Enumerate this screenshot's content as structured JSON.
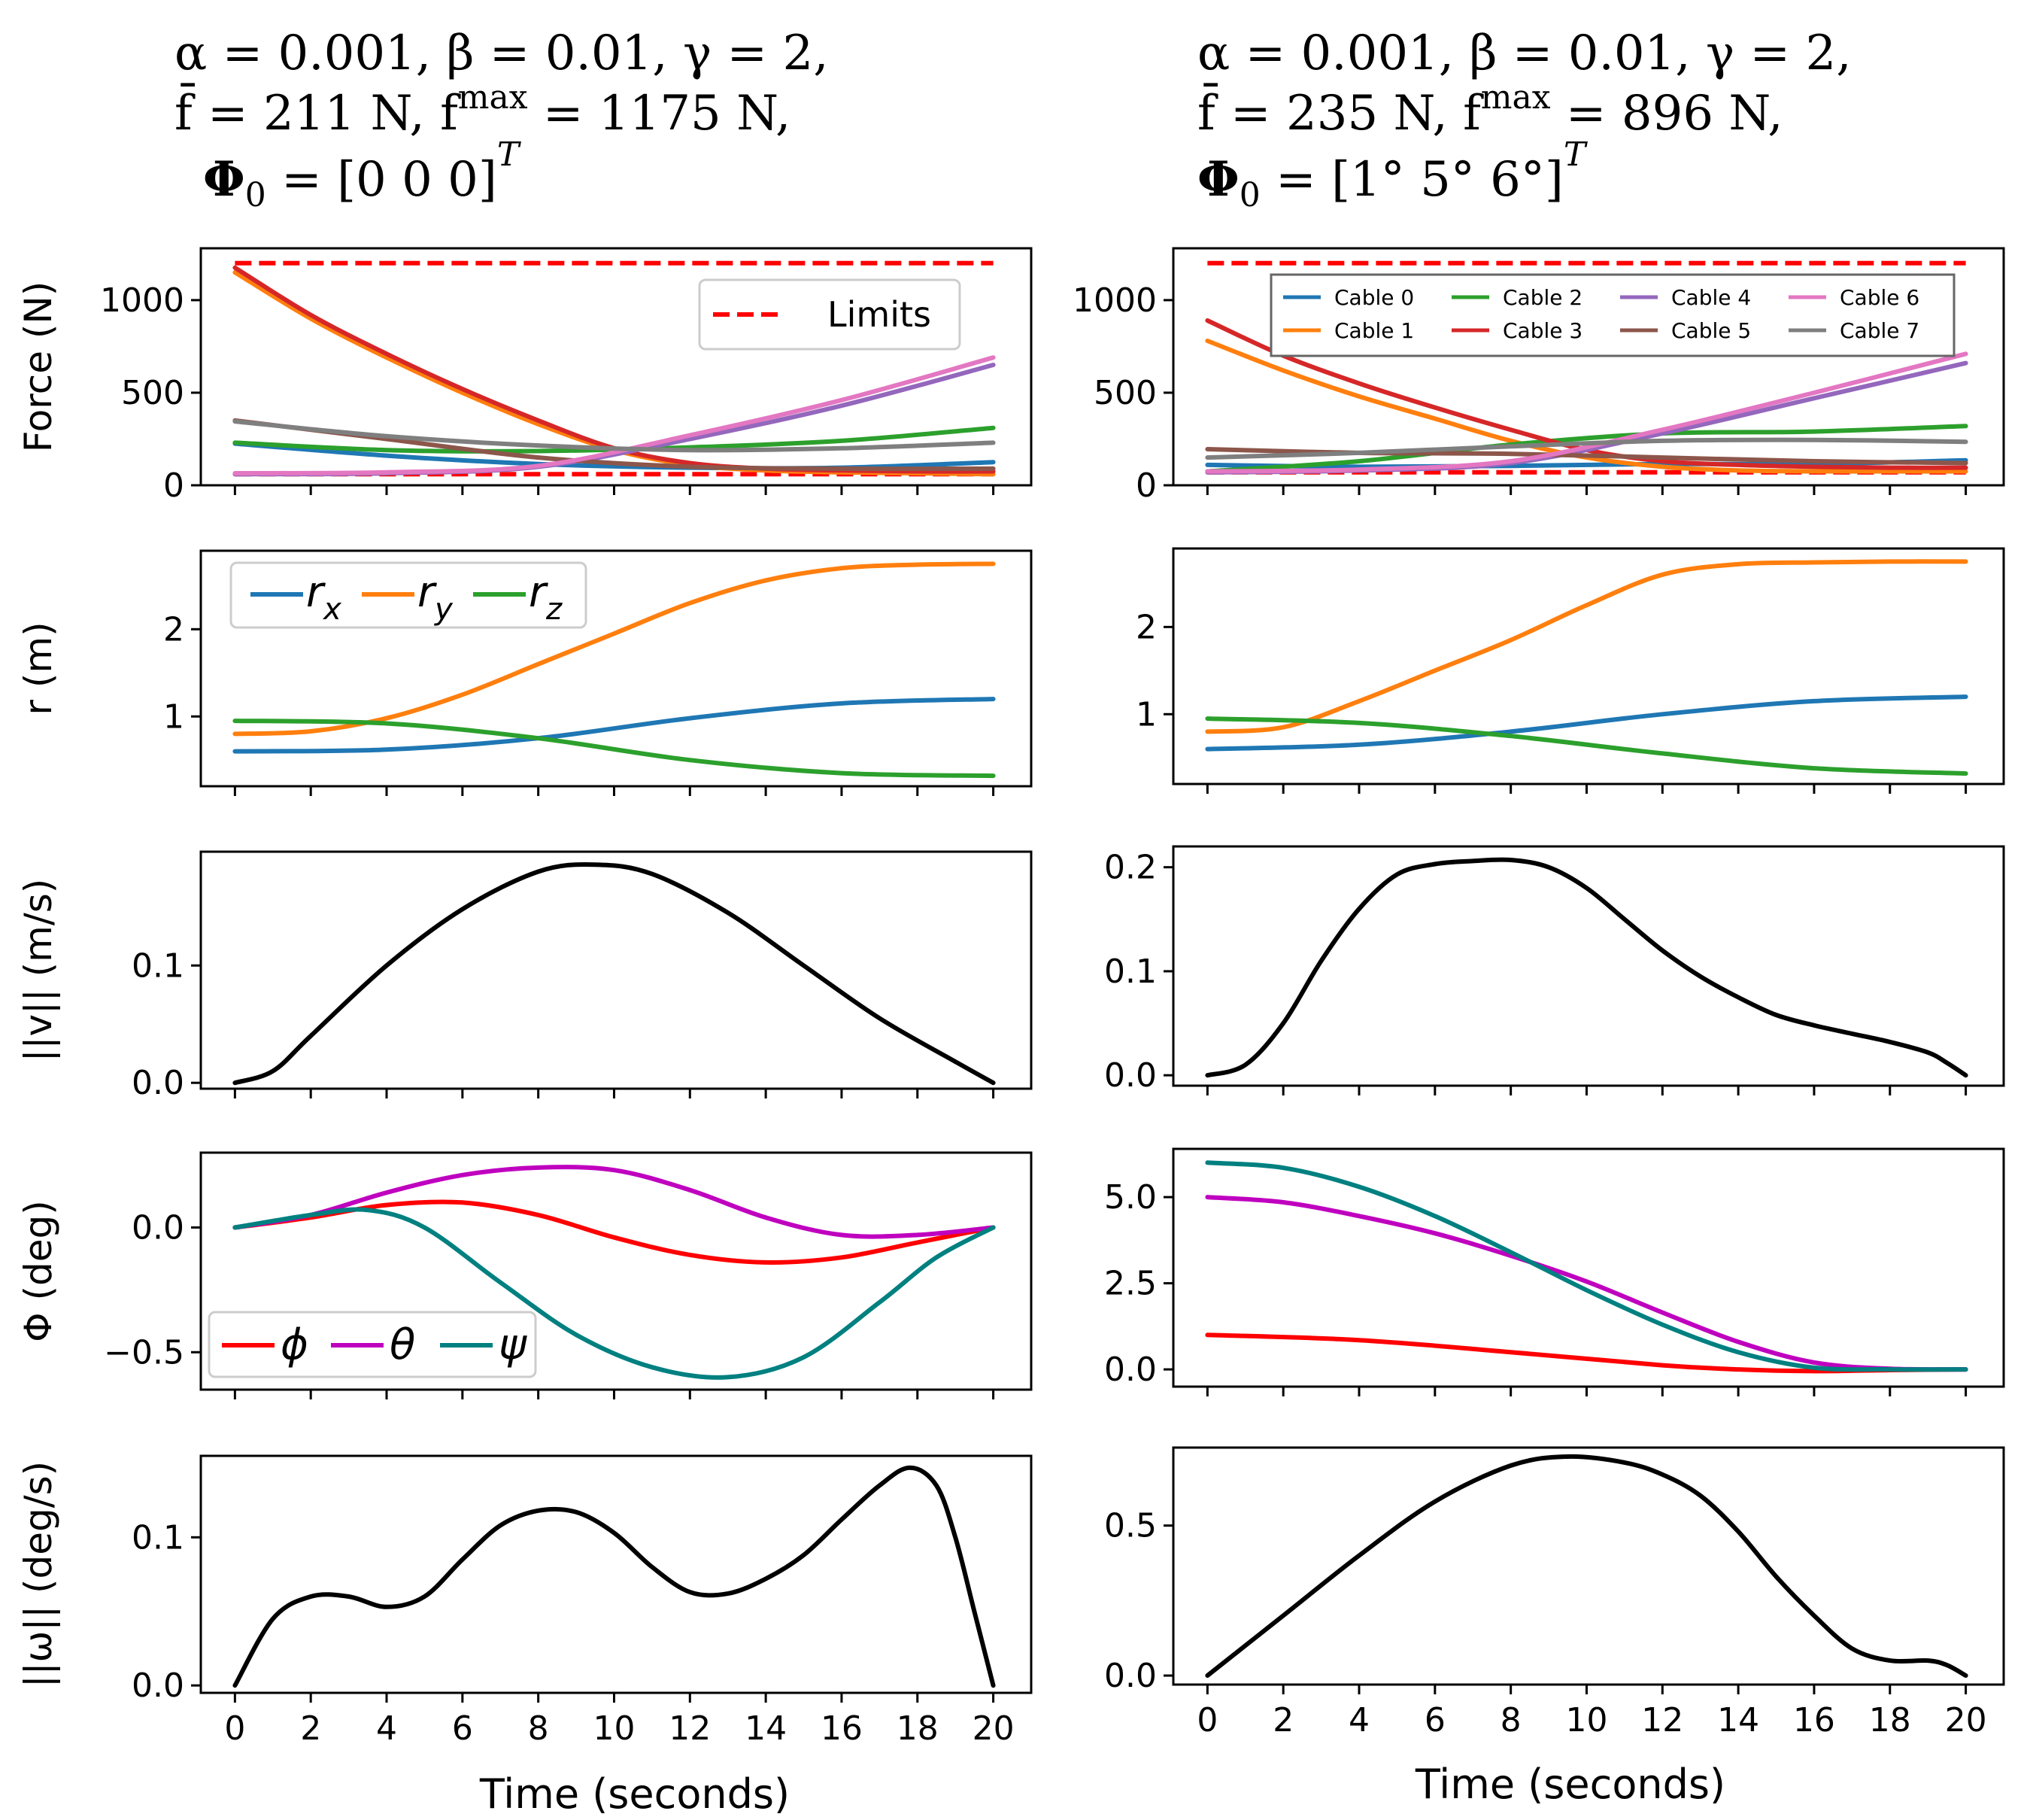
{
  "figure": {
    "columns": [
      {
        "title_lines": [
          "α = 0.001, β = 0.01, γ = 2,",
          "f̄ = 211 N, f^max = 1175 N,",
          "Φ0 = [0    0    0]^T"
        ],
        "title_parts": {
          "line2_a": "f̄ = 211 N, f",
          "line2_sup": "max",
          "line2_b": " = 1175 N,",
          "line3_a": "Φ",
          "line3_sub": "0",
          "line3_b": " = [0    0    0]",
          "line3_sup": "T"
        }
      },
      {
        "title_lines": [
          "α = 0.001, β = 0.01, γ = 2,",
          "f̄ = 235 N, f^max = 896 N,",
          "Φ0 = [1°    5°    6°]^T"
        ],
        "title_parts": {
          "line2_a": "f̄ = 235 N, f",
          "line2_sup": "max",
          "line2_b": " = 896 N,",
          "line3_a": "Φ",
          "line3_sub": "0",
          "line3_b": " = [1°    5°    6°]",
          "line3_sup": "T"
        }
      }
    ],
    "xlabel": "Time (seconds)",
    "xticks": [
      0,
      2,
      4,
      6,
      8,
      10,
      12,
      14,
      16,
      18,
      20
    ],
    "xlim": [
      -0.9,
      21.0
    ]
  },
  "colors": {
    "c0": "#1f77b4",
    "c1": "#ff7f0e",
    "c2": "#2ca02c",
    "c3": "#d62728",
    "c4": "#9467bd",
    "c5": "#8c564b",
    "c6": "#e377c2",
    "c7": "#7f7f7f",
    "limit": "#ff0000",
    "black": "#000000",
    "phi": "#ff0000",
    "theta": "#bf00bf",
    "psi": "#008080"
  },
  "chart_data": [
    {
      "id": "force-left",
      "type": "line",
      "row": 0,
      "col": 0,
      "ylabel": "Force (N)",
      "ylim": [
        0,
        1280
      ],
      "yticks": [
        0,
        500,
        1000
      ],
      "legend": {
        "position": "top-right",
        "entries": [
          "Limits"
        ]
      },
      "limits": [
        60,
        1200
      ],
      "series": [
        {
          "name": "Cable 0",
          "color": "c0",
          "x": [
            0,
            4,
            8,
            12,
            16,
            20
          ],
          "y": [
            225,
            160,
            115,
            95,
            95,
            125
          ]
        },
        {
          "name": "Cable 1",
          "color": "c1",
          "x": [
            0,
            2,
            4,
            6,
            8,
            10,
            12,
            14,
            16,
            18,
            20
          ],
          "y": [
            1150,
            900,
            690,
            500,
            330,
            190,
            110,
            80,
            70,
            65,
            60
          ]
        },
        {
          "name": "Cable 2",
          "color": "c2",
          "x": [
            0,
            4,
            8,
            12,
            16,
            20
          ],
          "y": [
            230,
            190,
            185,
            205,
            240,
            310
          ]
        },
        {
          "name": "Cable 3",
          "color": "c3",
          "x": [
            0,
            2,
            4,
            6,
            8,
            10,
            12,
            14,
            16,
            18,
            20
          ],
          "y": [
            1175,
            920,
            710,
            520,
            350,
            200,
            120,
            90,
            80,
            75,
            75
          ]
        },
        {
          "name": "Cable 4",
          "color": "c4",
          "x": [
            0,
            4,
            8,
            12,
            16,
            20
          ],
          "y": [
            60,
            65,
            100,
            250,
            430,
            650
          ]
        },
        {
          "name": "Cable 5",
          "color": "c5",
          "x": [
            0,
            4,
            8,
            12,
            16,
            20
          ],
          "y": [
            350,
            250,
            150,
            100,
            90,
            90
          ]
        },
        {
          "name": "Cable 6",
          "color": "c6",
          "x": [
            0,
            4,
            8,
            12,
            16,
            20
          ],
          "y": [
            65,
            70,
            105,
            270,
            460,
            690
          ]
        },
        {
          "name": "Cable 7",
          "color": "c7",
          "x": [
            0,
            4,
            8,
            12,
            16,
            20
          ],
          "y": [
            345,
            265,
            215,
            190,
            200,
            230
          ]
        }
      ]
    },
    {
      "id": "force-right",
      "type": "line",
      "row": 0,
      "col": 1,
      "ylabel": "",
      "ylim": [
        0,
        1280
      ],
      "yticks": [
        0,
        500,
        1000
      ],
      "legend": {
        "position": "top-right",
        "entries": [
          "Cable 0",
          "Cable 1",
          "Cable 2",
          "Cable 3",
          "Cable 4",
          "Cable 5",
          "Cable 6",
          "Cable 7"
        ]
      },
      "limits": [
        70,
        1200
      ],
      "series": [
        {
          "name": "Cable 0",
          "color": "c0",
          "x": [
            0,
            4,
            8,
            12,
            16,
            20
          ],
          "y": [
            110,
            100,
            105,
            115,
            115,
            135
          ]
        },
        {
          "name": "Cable 1",
          "color": "c1",
          "x": [
            0,
            2,
            4,
            6,
            8,
            10,
            12,
            14,
            16,
            18,
            20
          ],
          "y": [
            780,
            620,
            480,
            360,
            240,
            150,
            100,
            80,
            75,
            75,
            75
          ]
        },
        {
          "name": "Cable 2",
          "color": "c2",
          "x": [
            0,
            4,
            8,
            12,
            16,
            20
          ],
          "y": [
            75,
            130,
            220,
            280,
            290,
            320
          ]
        },
        {
          "name": "Cable 3",
          "color": "c3",
          "x": [
            0,
            2,
            4,
            6,
            8,
            10,
            12,
            14,
            16,
            18,
            20
          ],
          "y": [
            890,
            700,
            550,
            420,
            300,
            190,
            130,
            110,
            100,
            95,
            95
          ]
        },
        {
          "name": "Cable 4",
          "color": "c4",
          "x": [
            0,
            4,
            8,
            12,
            16,
            20
          ],
          "y": [
            70,
            80,
            120,
            280,
            470,
            660
          ]
        },
        {
          "name": "Cable 5",
          "color": "c5",
          "x": [
            0,
            4,
            8,
            12,
            16,
            20
          ],
          "y": [
            195,
            175,
            170,
            150,
            130,
            120
          ]
        },
        {
          "name": "Cable 6",
          "color": "c6",
          "x": [
            0,
            4,
            8,
            12,
            16,
            20
          ],
          "y": [
            75,
            85,
            130,
            300,
            500,
            710
          ]
        },
        {
          "name": "Cable 7",
          "color": "c7",
          "x": [
            0,
            4,
            8,
            12,
            16,
            20
          ],
          "y": [
            150,
            175,
            210,
            240,
            245,
            235
          ]
        }
      ]
    },
    {
      "id": "pos-left",
      "type": "line",
      "row": 1,
      "col": 0,
      "ylabel": "r (m)",
      "ylim": [
        0.2,
        2.9
      ],
      "yticks": [
        1,
        2
      ],
      "legend": {
        "position": "top-left",
        "entries": [
          "r_x",
          "r_y",
          "r_z"
        ]
      },
      "series": [
        {
          "name": "r_x",
          "color": "c0",
          "x": [
            0,
            4,
            8,
            12,
            16,
            20
          ],
          "y": [
            0.6,
            0.62,
            0.75,
            0.98,
            1.15,
            1.2
          ]
        },
        {
          "name": "r_y",
          "color": "c1",
          "x": [
            0,
            2,
            4,
            6,
            8,
            10,
            12,
            14,
            16,
            18,
            20
          ],
          "y": [
            0.8,
            0.83,
            0.98,
            1.25,
            1.6,
            1.95,
            2.3,
            2.56,
            2.7,
            2.74,
            2.75
          ]
        },
        {
          "name": "r_z",
          "color": "c2",
          "x": [
            0,
            4,
            8,
            12,
            16,
            20
          ],
          "y": [
            0.95,
            0.92,
            0.75,
            0.5,
            0.35,
            0.32
          ]
        }
      ]
    },
    {
      "id": "pos-right",
      "type": "line",
      "row": 1,
      "col": 1,
      "ylabel": "",
      "ylim": [
        0.2,
        2.9
      ],
      "yticks": [
        1,
        2
      ],
      "legend": null,
      "series": [
        {
          "name": "r_x",
          "color": "c0",
          "x": [
            0,
            4,
            8,
            12,
            16,
            20
          ],
          "y": [
            0.6,
            0.65,
            0.8,
            1.0,
            1.15,
            1.2
          ]
        },
        {
          "name": "r_y",
          "color": "c1",
          "x": [
            0,
            2,
            4,
            6,
            8,
            10,
            12,
            14,
            16,
            18,
            20
          ],
          "y": [
            0.8,
            0.85,
            1.15,
            1.5,
            1.85,
            2.25,
            2.6,
            2.72,
            2.74,
            2.75,
            2.75
          ]
        },
        {
          "name": "r_z",
          "color": "c2",
          "x": [
            0,
            4,
            8,
            12,
            16,
            20
          ],
          "y": [
            0.95,
            0.9,
            0.75,
            0.55,
            0.38,
            0.32
          ]
        }
      ]
    },
    {
      "id": "vel-left",
      "type": "line",
      "row": 2,
      "col": 0,
      "ylabel": "||v|| (m/s)",
      "ylim": [
        -0.005,
        0.197
      ],
      "yticks": [
        0.0,
        0.1
      ],
      "legend": null,
      "series": [
        {
          "name": "||v||",
          "color": "black",
          "x": [
            0,
            1,
            2,
            4,
            6,
            8,
            9.5,
            11,
            13,
            15,
            17,
            19,
            20
          ],
          "y": [
            0.0,
            0.01,
            0.04,
            0.1,
            0.148,
            0.18,
            0.186,
            0.178,
            0.145,
            0.1,
            0.055,
            0.018,
            0.0
          ]
        }
      ]
    },
    {
      "id": "vel-right",
      "type": "line",
      "row": 2,
      "col": 1,
      "ylabel": "",
      "ylim": [
        -0.01,
        0.22
      ],
      "yticks": [
        0.0,
        0.1,
        0.2
      ],
      "legend": null,
      "series": [
        {
          "name": "||v||",
          "color": "black",
          "x": [
            0,
            1,
            2,
            3,
            4,
            5,
            6,
            7,
            8,
            9,
            10,
            11,
            12,
            13,
            14,
            15,
            16,
            17,
            18,
            19,
            19.5,
            20
          ],
          "y": [
            0.0,
            0.01,
            0.05,
            0.11,
            0.16,
            0.193,
            0.203,
            0.206,
            0.207,
            0.2,
            0.18,
            0.15,
            0.12,
            0.095,
            0.075,
            0.058,
            0.048,
            0.04,
            0.032,
            0.022,
            0.012,
            0.0
          ]
        }
      ]
    },
    {
      "id": "att-left",
      "type": "line",
      "row": 3,
      "col": 0,
      "ylabel": "Φ (deg)",
      "ylim": [
        -0.65,
        0.3
      ],
      "yticks": [
        -0.5,
        0.0
      ],
      "legend": {
        "position": "bottom-left",
        "entries": [
          "ϕ",
          "θ",
          "ψ"
        ]
      },
      "series": [
        {
          "name": "ϕ",
          "color": "phi",
          "x": [
            0,
            2,
            4,
            6,
            8,
            10,
            12,
            14,
            16,
            18,
            20
          ],
          "y": [
            0,
            0.04,
            0.09,
            0.1,
            0.05,
            -0.04,
            -0.11,
            -0.14,
            -0.12,
            -0.06,
            0
          ]
        },
        {
          "name": "θ",
          "color": "theta",
          "x": [
            0,
            2,
            4,
            6,
            8,
            10,
            12,
            14,
            16,
            18,
            20
          ],
          "y": [
            0,
            0.05,
            0.14,
            0.21,
            0.24,
            0.23,
            0.15,
            0.04,
            -0.03,
            -0.03,
            0
          ]
        },
        {
          "name": "ψ",
          "color": "psi",
          "x": [
            0,
            2,
            3.5,
            5,
            7,
            9,
            11,
            13,
            15,
            17,
            18.5,
            20
          ],
          "y": [
            0,
            0.05,
            0.07,
            0.0,
            -0.22,
            -0.43,
            -0.56,
            -0.6,
            -0.52,
            -0.3,
            -0.12,
            0
          ]
        }
      ]
    },
    {
      "id": "att-right",
      "type": "line",
      "row": 3,
      "col": 1,
      "ylabel": "",
      "ylim": [
        -0.5,
        6.4
      ],
      "yticks": [
        0.0,
        2.5,
        5.0
      ],
      "legend": null,
      "series": [
        {
          "name": "ϕ",
          "color": "phi",
          "x": [
            0,
            4,
            8,
            12,
            14,
            16,
            18,
            20
          ],
          "y": [
            1.0,
            0.85,
            0.5,
            0.12,
            0.0,
            -0.05,
            -0.02,
            0
          ]
        },
        {
          "name": "θ",
          "color": "theta",
          "x": [
            0,
            2,
            4,
            6,
            8,
            10,
            12,
            14,
            16,
            18,
            20
          ],
          "y": [
            5.0,
            4.85,
            4.45,
            3.95,
            3.3,
            2.55,
            1.65,
            0.8,
            0.2,
            0.02,
            0
          ]
        },
        {
          "name": "ψ",
          "color": "psi",
          "x": [
            0,
            2,
            4,
            6,
            8,
            10,
            12,
            14,
            16,
            18,
            20
          ],
          "y": [
            6.0,
            5.85,
            5.3,
            4.45,
            3.4,
            2.3,
            1.3,
            0.5,
            0.05,
            0.0,
            0
          ]
        }
      ]
    },
    {
      "id": "angvel-left",
      "type": "line",
      "row": 4,
      "col": 0,
      "ylabel": "||ω|| (deg/s)",
      "ylim": [
        -0.005,
        0.155
      ],
      "yticks": [
        0.0,
        0.1
      ],
      "legend": null,
      "series": [
        {
          "name": "||ω||",
          "color": "black",
          "x": [
            0,
            1,
            2,
            3,
            4,
            5,
            6,
            7,
            8,
            9,
            10,
            11,
            12,
            13,
            14,
            15,
            16,
            17,
            17.8,
            18.5,
            19,
            19.5,
            20
          ],
          "y": [
            0.0,
            0.045,
            0.06,
            0.06,
            0.053,
            0.06,
            0.085,
            0.108,
            0.118,
            0.117,
            0.103,
            0.08,
            0.063,
            0.062,
            0.072,
            0.088,
            0.112,
            0.135,
            0.147,
            0.135,
            0.1,
            0.05,
            0.0
          ]
        }
      ]
    },
    {
      "id": "angvel-right",
      "type": "line",
      "row": 4,
      "col": 1,
      "ylabel": "",
      "ylim": [
        -0.03,
        0.76
      ],
      "yticks": [
        0.0,
        0.5
      ],
      "legend": null,
      "series": [
        {
          "name": "||ω||",
          "color": "black",
          "x": [
            0,
            2,
            4,
            6,
            8,
            9.5,
            11,
            12,
            13,
            14,
            15,
            16,
            17,
            18,
            19,
            19.5,
            20
          ],
          "y": [
            0.0,
            0.2,
            0.4,
            0.58,
            0.7,
            0.73,
            0.71,
            0.67,
            0.6,
            0.48,
            0.33,
            0.2,
            0.09,
            0.05,
            0.05,
            0.035,
            0.0
          ]
        }
      ]
    }
  ]
}
